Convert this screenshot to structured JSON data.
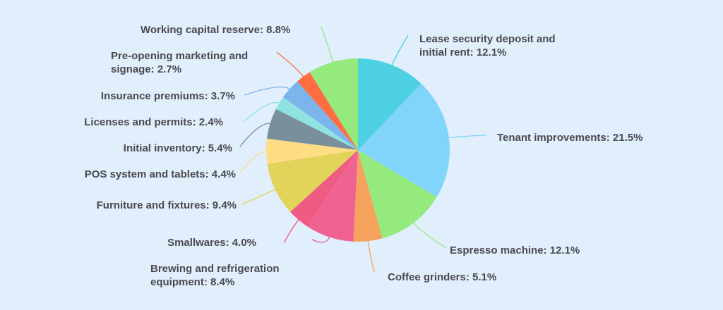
{
  "chart_data": {
    "type": "pie",
    "title": "",
    "start_angle_deg": 0,
    "direction": "clockwise",
    "center": [
      507,
      213
    ],
    "radius": 130,
    "slices": [
      {
        "label": "Lease security deposit and initial rent",
        "value": 12.1,
        "color": "#4dd0e1",
        "text1": "Lease security deposit and",
        "text2": "initial rent: 12.1%"
      },
      {
        "label": "Tenant improvements",
        "value": 21.5,
        "color": "#81d4fa",
        "text1": "Tenant improvements: 21.5%"
      },
      {
        "label": "Espresso machine",
        "value": 12.1,
        "color": "#94ea7c",
        "text1": "Espresso machine: 12.1%"
      },
      {
        "label": "Coffee grinders",
        "value": 5.1,
        "color": "#f6a45d",
        "text1": "Coffee grinders: 5.1%"
      },
      {
        "label": "Brewing and refrigeration equipment",
        "value": 8.4,
        "color": "#f06292",
        "text1": "Brewing and refrigeration",
        "text2": "equipment: 8.4%"
      },
      {
        "label": "Smallwares",
        "value": 4.0,
        "color": "#ef5b82",
        "text1": "Smallwares: 4.0%"
      },
      {
        "label": "Furniture and fixtures",
        "value": 9.4,
        "color": "#e2d35a",
        "text1": "Furniture and fixtures: 9.4%"
      },
      {
        "label": "POS system and tablets",
        "value": 4.4,
        "color": "#ffdd85",
        "text1": "POS system and tablets: 4.4%"
      },
      {
        "label": "Initial inventory",
        "value": 5.4,
        "color": "#78909c",
        "text1": "Initial inventory: 5.4%"
      },
      {
        "label": "Licenses and permits",
        "value": 2.4,
        "color": "#8ee3e0",
        "text1": "Licenses and permits: 2.4%"
      },
      {
        "label": "Insurance premiums",
        "value": 3.7,
        "color": "#7cb4ec",
        "text1": "Insurance premiums: 3.7%"
      },
      {
        "label": "Pre-opening marketing and signage",
        "value": 2.7,
        "color": "#ff6e40",
        "text1": "Pre-opening marketing and",
        "text2": "signage: 2.7%"
      },
      {
        "label": "Working capital reserve",
        "value": 8.8,
        "color": "#94ea7c",
        "text1": "Working capital reserve: 8.8%"
      }
    ],
    "legend": "none",
    "data_labels": "outside with leader lines"
  }
}
